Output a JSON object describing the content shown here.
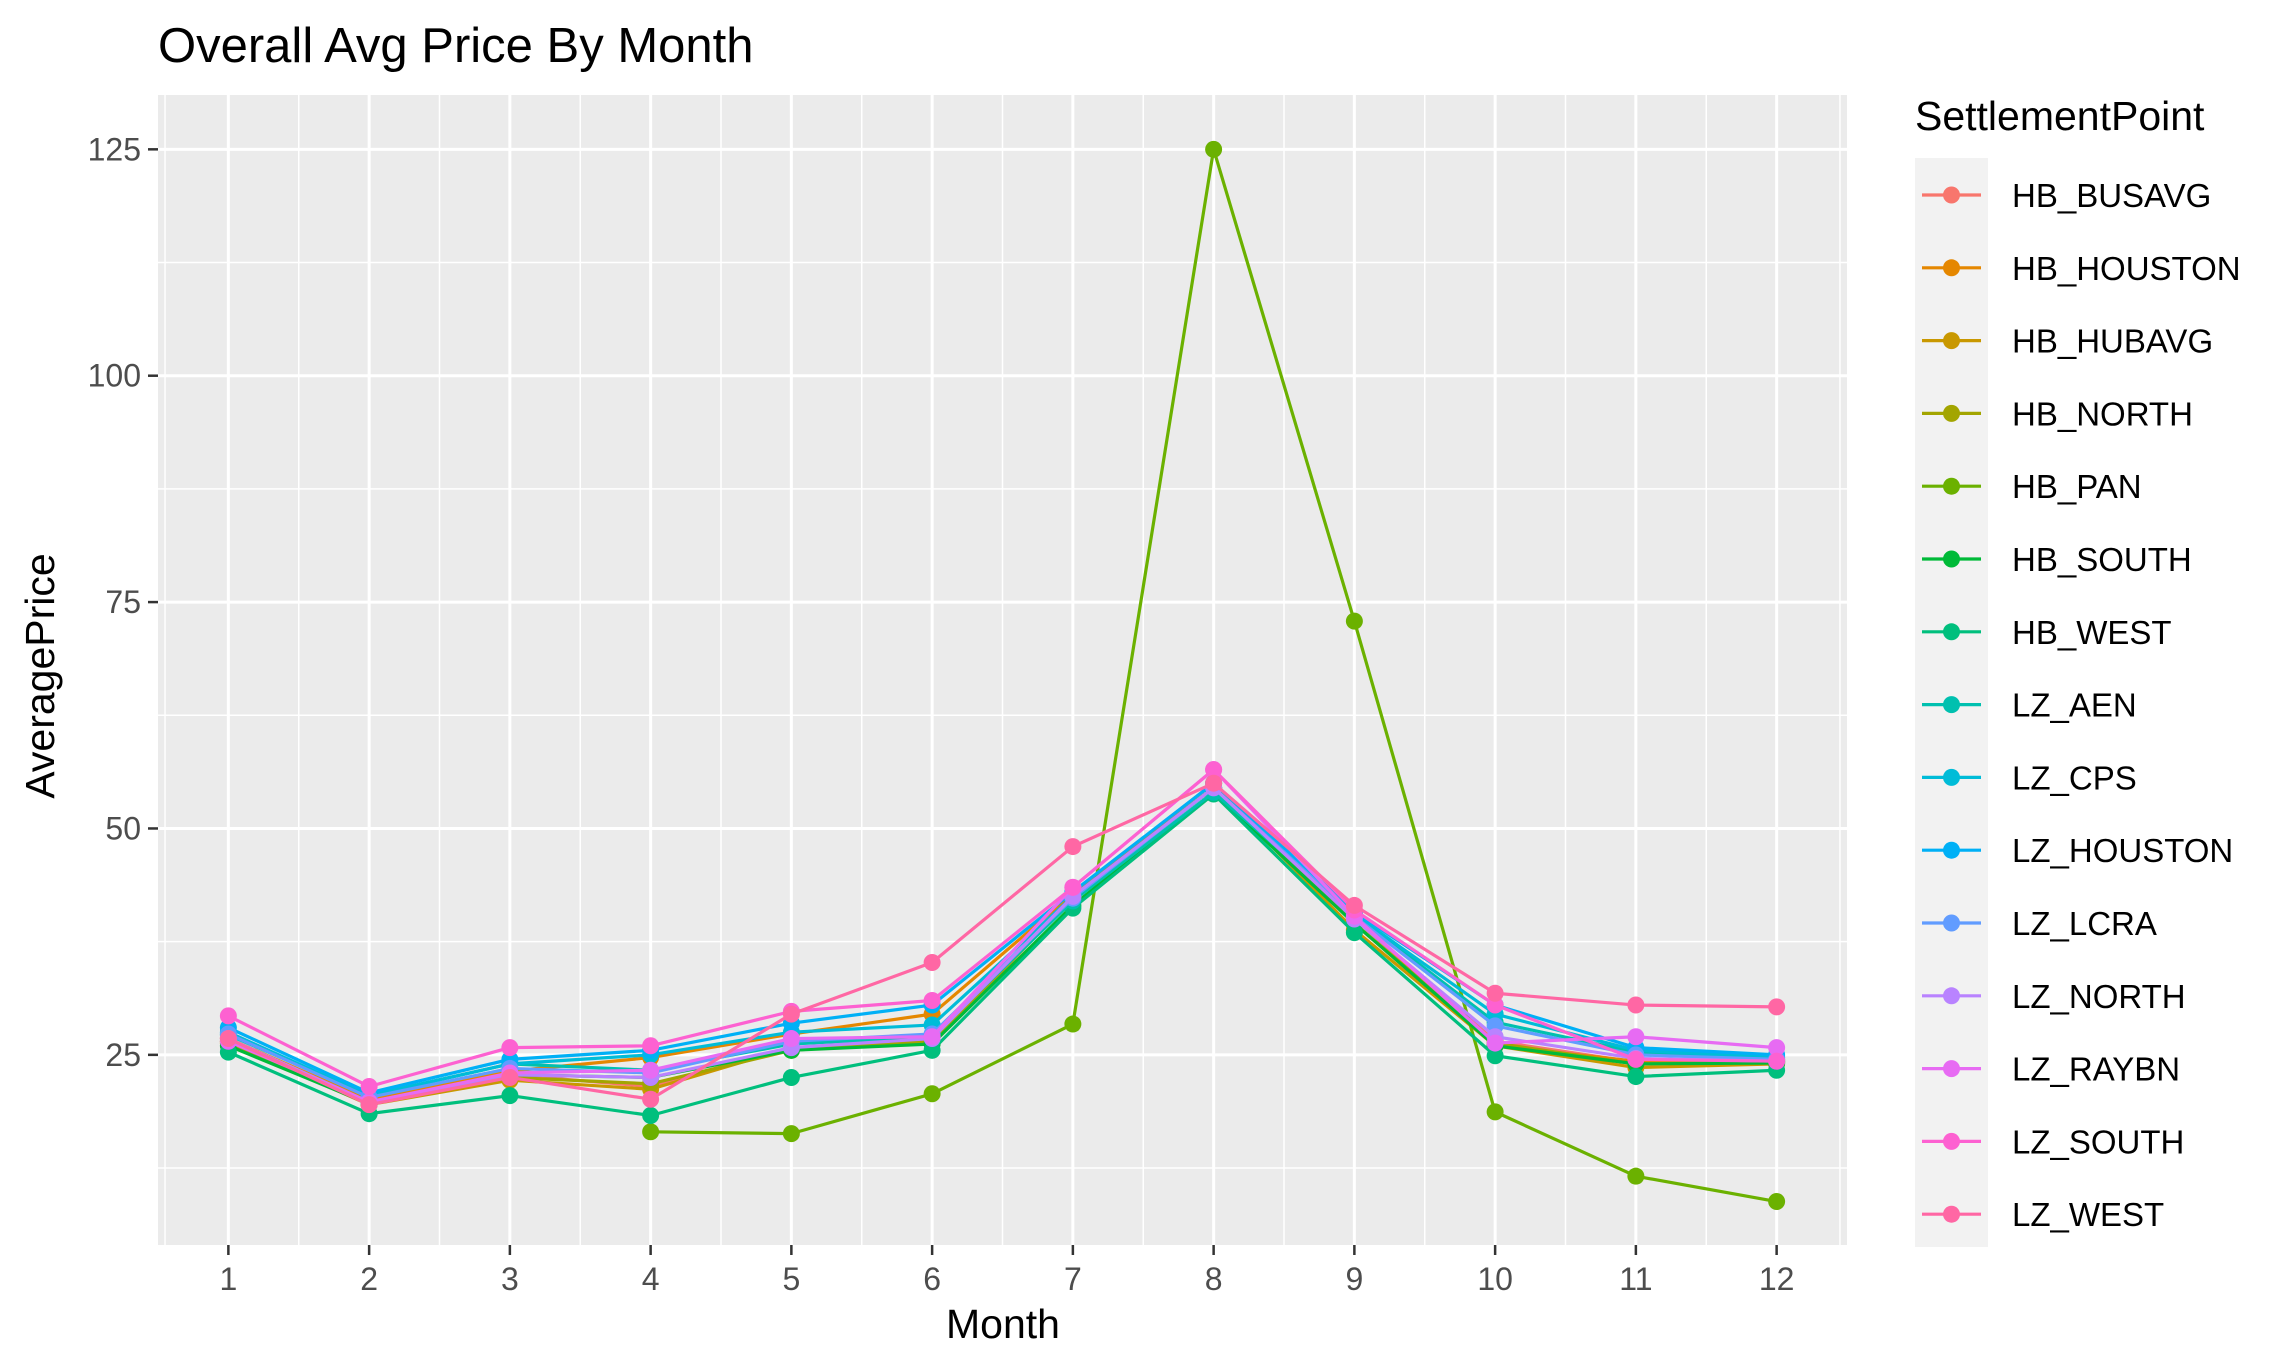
{
  "chart_data": {
    "type": "line",
    "title": "Overall Avg Price By Month",
    "xlabel": "Month",
    "ylabel": "AveragePrice",
    "x": [
      1,
      2,
      3,
      4,
      5,
      6,
      7,
      8,
      9,
      10,
      11,
      12
    ],
    "x_tick_labels": [
      "1",
      "2",
      "3",
      "4",
      "5",
      "6",
      "7",
      "8",
      "9",
      "10",
      "11",
      "12"
    ],
    "y_ticks": [
      25,
      50,
      75,
      100,
      125
    ],
    "y_tick_labels": [
      "25",
      "50",
      "75",
      "100",
      "125"
    ],
    "xlim": [
      0.5,
      12.5
    ],
    "ylim": [
      4,
      131
    ],
    "grid": true,
    "background": "#EBEBEB",
    "legend": {
      "title": "SettlementPoint",
      "position": "right"
    },
    "series": [
      {
        "name": "HB_BUSAVG",
        "color": "#F8766D",
        "values": [
          26.5,
          19.8,
          22.8,
          21.5,
          25.8,
          26.5,
          42.5,
          54.5,
          40.0,
          26.5,
          24.2,
          24.3
        ]
      },
      {
        "name": "HB_HOUSTON",
        "color": "#E58700",
        "values": [
          26.8,
          20.0,
          23.2,
          24.7,
          27.3,
          29.5,
          42.8,
          55.0,
          39.5,
          26.0,
          24.3,
          24.5
        ]
      },
      {
        "name": "HB_HUBAVG",
        "color": "#C99800",
        "values": [
          26.3,
          19.5,
          22.2,
          21.2,
          25.8,
          26.3,
          42.3,
          54.5,
          38.8,
          26.0,
          23.6,
          24.0
        ]
      },
      {
        "name": "HB_NORTH",
        "color": "#A3A500",
        "values": [
          26.5,
          19.6,
          22.5,
          21.8,
          25.5,
          26.5,
          42.5,
          54.5,
          39.5,
          26.3,
          24.0,
          24.2
        ]
      },
      {
        "name": "HB_PAN",
        "color": "#6BB100",
        "values": [
          null,
          null,
          null,
          16.5,
          16.3,
          20.7,
          28.4,
          125.0,
          72.9,
          18.7,
          11.6,
          8.8
        ]
      },
      {
        "name": "HB_SOUTH",
        "color": "#00BA38",
        "values": [
          26.0,
          19.6,
          22.8,
          22.5,
          25.5,
          26.2,
          41.5,
          54.0,
          39.5,
          26.0,
          24.0,
          24.1
        ]
      },
      {
        "name": "HB_WEST",
        "color": "#00BF7D",
        "values": [
          25.3,
          18.5,
          20.5,
          18.3,
          22.5,
          25.5,
          41.2,
          53.8,
          38.5,
          24.9,
          22.6,
          23.3
        ]
      },
      {
        "name": "LZ_AEN",
        "color": "#00C0AF",
        "values": [
          27.2,
          20.5,
          24.0,
          23.3,
          26.2,
          27.0,
          42.0,
          54.0,
          40.5,
          28.6,
          25.3,
          24.3
        ]
      },
      {
        "name": "LZ_CPS",
        "color": "#00BCD8",
        "values": [
          27.5,
          20.5,
          24.0,
          25.0,
          27.5,
          28.3,
          42.5,
          54.5,
          40.5,
          29.5,
          25.5,
          24.7
        ]
      },
      {
        "name": "LZ_HOUSTON",
        "color": "#00B0F6",
        "values": [
          28.0,
          20.8,
          24.5,
          25.5,
          28.5,
          30.5,
          43.0,
          55.0,
          40.8,
          30.5,
          25.8,
          25.0
        ]
      },
      {
        "name": "LZ_LCRA",
        "color": "#619CFF",
        "values": [
          27.3,
          20.3,
          23.5,
          23.0,
          26.5,
          27.3,
          42.3,
          54.5,
          40.3,
          28.2,
          25.0,
          24.5
        ]
      },
      {
        "name": "LZ_NORTH",
        "color": "#B983FF",
        "values": [
          26.8,
          19.8,
          22.8,
          22.5,
          25.8,
          26.8,
          42.5,
          54.5,
          40.0,
          27.0,
          24.6,
          24.3
        ]
      },
      {
        "name": "LZ_RAYBN",
        "color": "#E76BF3",
        "values": [
          26.5,
          19.8,
          23.0,
          23.3,
          26.8,
          27.0,
          43.5,
          56.5,
          40.3,
          26.3,
          27.0,
          25.8
        ]
      },
      {
        "name": "LZ_SOUTH",
        "color": "#FD61D1",
        "values": [
          29.3,
          21.5,
          25.8,
          26.0,
          29.8,
          31.0,
          43.5,
          56.5,
          41.0,
          30.5,
          24.5,
          24.3
        ]
      },
      {
        "name": "LZ_WEST",
        "color": "#FF67A4",
        "values": [
          26.8,
          19.5,
          22.5,
          20.1,
          29.5,
          35.2,
          48.0,
          55.0,
          41.5,
          31.8,
          30.5,
          30.3
        ]
      }
    ]
  }
}
